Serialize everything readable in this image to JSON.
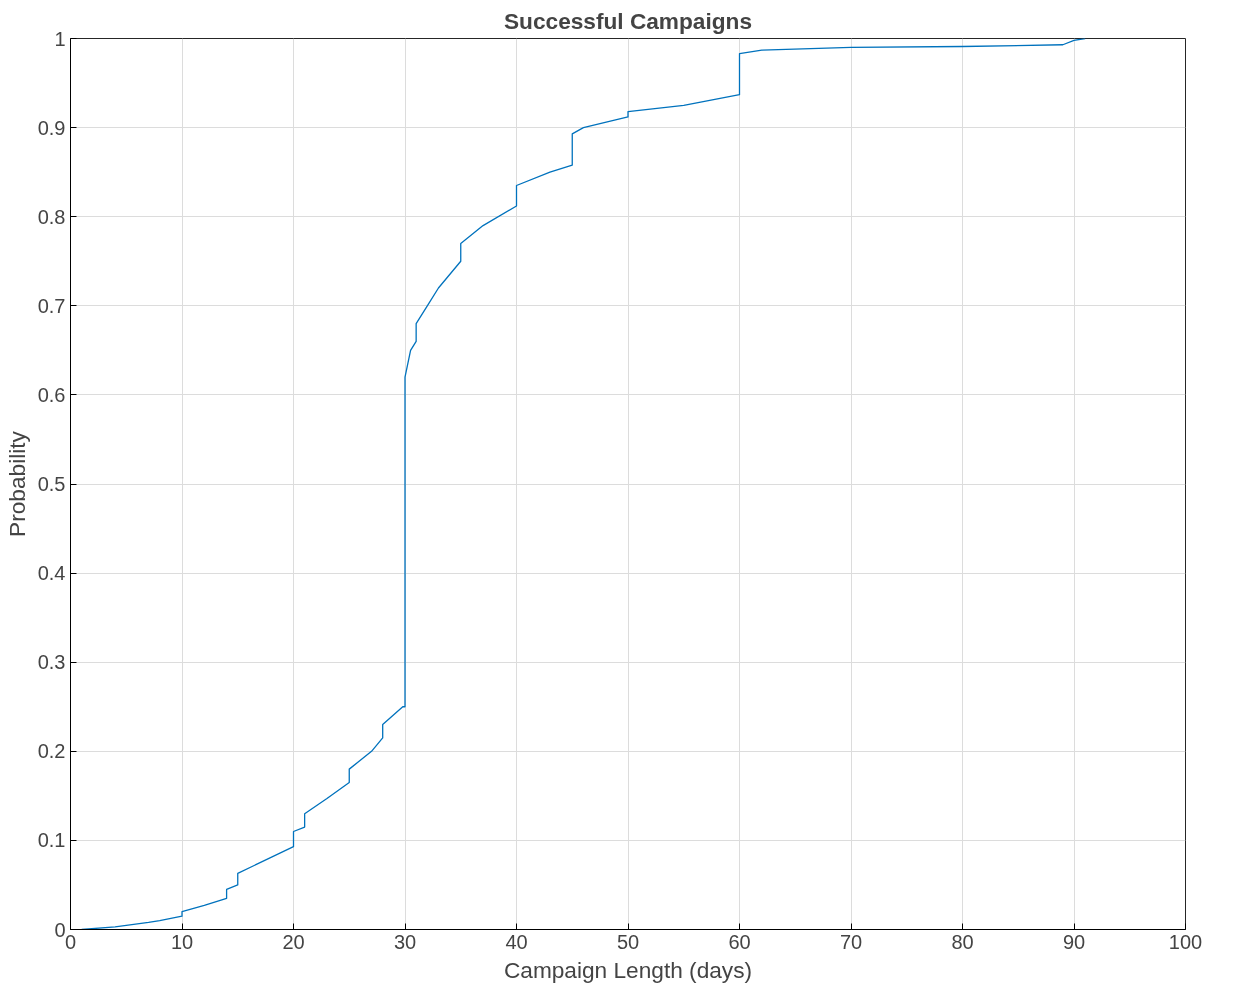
{
  "chart_data": {
    "type": "line",
    "title": "Successful Campaigns",
    "xlabel": "Campaign Length (days)",
    "ylabel": "Probability",
    "series": [
      {
        "color": "#0072bd",
        "x": [
          1,
          4,
          7,
          8,
          10,
          10,
          12,
          14,
          14,
          15,
          15,
          17,
          20,
          20,
          21,
          21,
          23,
          25,
          25,
          27,
          28,
          28,
          29.8,
          30,
          30,
          30.5,
          31,
          31,
          32,
          33,
          35,
          35,
          37,
          40,
          40,
          43,
          45,
          45,
          46,
          50,
          50,
          55,
          60,
          60,
          62,
          70,
          80,
          89,
          90,
          91
        ],
        "values": [
          0,
          0.003,
          0.008,
          0.01,
          0.015,
          0.02,
          0.027,
          0.035,
          0.045,
          0.05,
          0.063,
          0.075,
          0.093,
          0.11,
          0.115,
          0.13,
          0.147,
          0.165,
          0.18,
          0.2,
          0.215,
          0.23,
          0.25,
          0.25,
          0.62,
          0.65,
          0.66,
          0.68,
          0.7,
          0.72,
          0.75,
          0.77,
          0.79,
          0.812,
          0.835,
          0.85,
          0.858,
          0.893,
          0.9,
          0.912,
          0.918,
          0.925,
          0.937,
          0.983,
          0.987,
          0.99,
          0.991,
          0.993,
          0.998,
          1
        ]
      }
    ],
    "xlim": [
      0,
      100
    ],
    "xticks": [
      0,
      10,
      20,
      30,
      40,
      50,
      60,
      70,
      80,
      90,
      100
    ],
    "ylim": [
      0,
      1
    ],
    "yticks": [
      0,
      0.1,
      0.2,
      0.3,
      0.4,
      0.5,
      0.6,
      0.7,
      0.8,
      0.9,
      1
    ],
    "grid": true,
    "marker": "none",
    "line_style": "solid"
  }
}
